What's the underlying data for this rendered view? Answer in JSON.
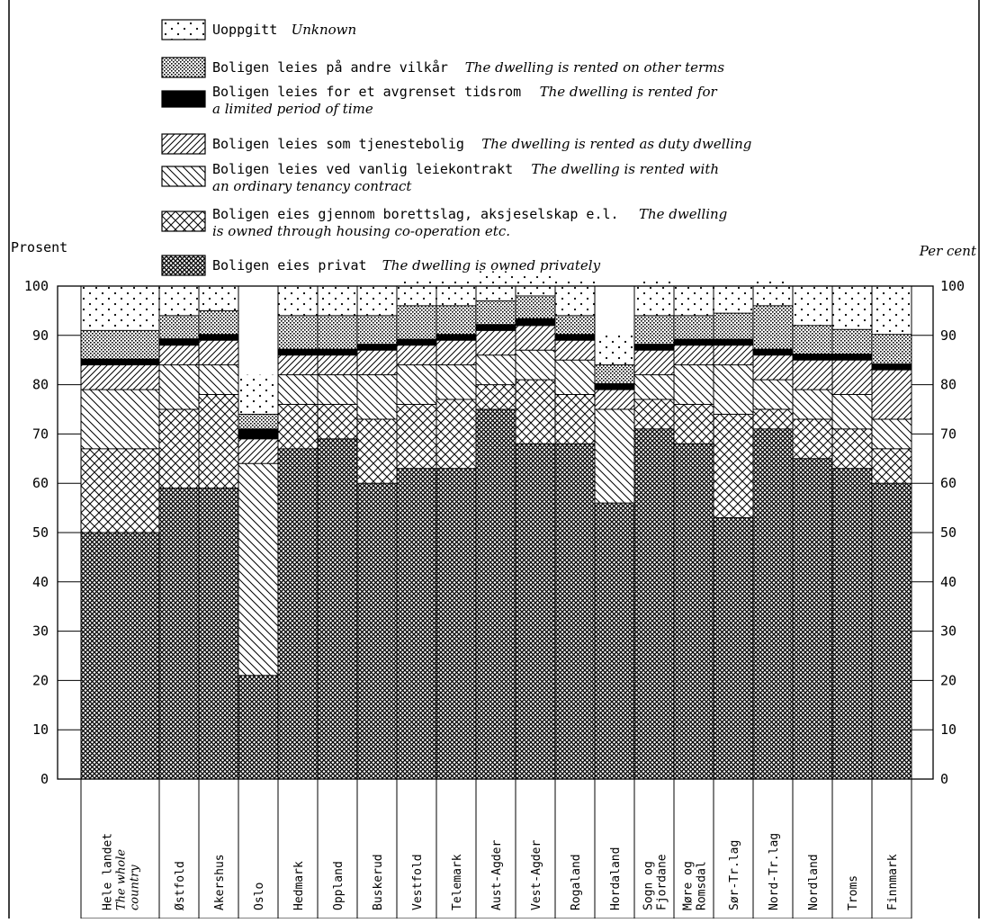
{
  "chart_data": {
    "type": "bar",
    "stacked": true,
    "ylabel": "Prosent",
    "ylabel_en": "Per cent",
    "ylim": [
      0,
      100
    ],
    "yticks": [
      0,
      10,
      20,
      30,
      40,
      50,
      60,
      70,
      80,
      90,
      100
    ],
    "grid": false,
    "legend_position": "top",
    "categories": [
      [
        "Hele landet",
        "The whole",
        "country"
      ],
      [
        "Østfold"
      ],
      [
        "Akershus"
      ],
      [
        "Oslo"
      ],
      [
        "Hedmark"
      ],
      [
        "Oppland"
      ],
      [
        "Buskerud"
      ],
      [
        "Vestfold"
      ],
      [
        "Telemark"
      ],
      [
        "Aust-Agder"
      ],
      [
        "Vest-Agder"
      ],
      [
        "Rogaland"
      ],
      [
        "Hordaland"
      ],
      [
        "Sogn og",
        "Fjordane"
      ],
      [
        "Møre og",
        "Romsdal"
      ],
      [
        "Sør-Tr.lag"
      ],
      [
        "Nord-Tr.lag"
      ],
      [
        "Nordland"
      ],
      [
        "Troms"
      ],
      [
        "Finnmark"
      ]
    ],
    "series": [
      {
        "name": "Boligen eies privat",
        "name_en": "The dwelling is owned privately",
        "pattern": "dense-cross",
        "values": [
          50,
          59,
          59,
          21,
          67,
          69,
          60,
          63,
          63,
          75,
          68,
          68,
          56,
          71,
          68,
          53,
          71,
          65,
          63,
          60
        ]
      },
      {
        "name": "Boligen eies gjennom borettslag, aksjeselskap e.l.",
        "name_en": "The dwelling is owned through housing co-operation etc.",
        "pattern": "cross",
        "values": [
          17,
          16,
          19,
          0,
          9,
          7,
          13,
          13,
          14,
          5,
          13,
          10,
          0,
          6,
          8,
          21,
          4,
          8,
          8,
          7
        ]
      },
      {
        "name": "Boligen leies ved vanlig leiekontrakt",
        "name_en": "The dwelling is rented with an ordinary tenancy contract",
        "pattern": "backslash",
        "values": [
          12,
          9,
          6,
          43,
          6,
          6,
          9,
          8,
          7,
          6,
          6,
          7,
          19,
          5,
          8,
          10,
          6,
          6,
          7,
          6
        ]
      },
      {
        "name": "Boligen leies som tjenestebolig",
        "name_en": "The dwelling is rented as duty dwelling",
        "pattern": "slash",
        "values": [
          5,
          4,
          5,
          5,
          4,
          4,
          5,
          4,
          5,
          5,
          5,
          4,
          4,
          5,
          4,
          4,
          5,
          6,
          7,
          10
        ]
      },
      {
        "name": "Boligen leies for et avgrenset tidsrom",
        "name_en": "The dwelling is rented for a limited period of time",
        "pattern": "solid",
        "values": [
          1.2,
          1.3,
          1.2,
          2,
          1.2,
          1.2,
          1.2,
          1.2,
          1.2,
          1.2,
          1.4,
          1.2,
          1.2,
          1.2,
          1.2,
          1.2,
          1.2,
          1.2,
          1.2,
          1.2
        ]
      },
      {
        "name": "Boligen leies på andre vilkår",
        "name_en": "The dwelling is rented on other terms",
        "pattern": "dots-dense",
        "values": [
          5.8,
          4.7,
          4.8,
          3,
          6.8,
          6.8,
          5.8,
          6.8,
          5.8,
          4.8,
          4.6,
          3.8,
          3.8,
          5.8,
          4.8,
          5.3,
          8.8,
          5.8,
          5,
          6
        ]
      },
      {
        "name": "Uoppgitt",
        "name_en": "Unknown",
        "pattern": "dots-sparse",
        "values": [
          9,
          6,
          5,
          8,
          6,
          6,
          6,
          5,
          5,
          6,
          4,
          7,
          6,
          7,
          6,
          6,
          5,
          8,
          9,
          10
        ]
      }
    ]
  },
  "colors": {
    "ink": "#000000",
    "paper": "#ffffff"
  },
  "legend_lines": [
    {
      "series": 6,
      "main": "Uoppgitt",
      "en1": "Unknown",
      "en2": ""
    },
    {
      "series": 5,
      "main": "Boligen leies på andre vilkår",
      "en1": "The dwelling is rented on other terms",
      "en2": ""
    },
    {
      "series": 4,
      "main": "Boligen leies for et avgrenset tidsrom",
      "en1": "The dwelling is rented for",
      "en2": "a limited period of time"
    },
    {
      "series": 3,
      "main": "Boligen leies som tjenestebolig",
      "en1": "The dwelling is rented as duty dwelling",
      "en2": ""
    },
    {
      "series": 2,
      "main": "Boligen leies ved vanlig leiekontrakt",
      "en1": "The dwelling is rented with",
      "en2": "an ordinary tenancy contract"
    },
    {
      "series": 1,
      "main": "Boligen eies gjennom borettslag, aksjeselskap e.l.",
      "en1": "The dwelling",
      "en2": "is owned through housing co-operation etc."
    },
    {
      "series": 0,
      "main": "Boligen eies privat",
      "en1": "The dwelling is owned privately",
      "en2": ""
    }
  ]
}
